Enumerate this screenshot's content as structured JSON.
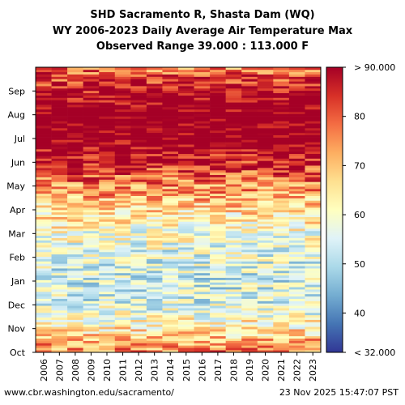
{
  "header": {
    "line1": "SHD Sacramento R, Shasta Dam (WQ)",
    "line2": "WY 2006-2023 Daily Average Air Temperature Max",
    "line3": "Observed Range 39.000 : 113.000 F"
  },
  "footer": {
    "source": "www.cbr.washington.edu/sacramento/",
    "timestamp": "23 Nov 2025 15:47:07 PST"
  },
  "chart_data": {
    "type": "heatmap",
    "x_categories": [
      "2006",
      "2007",
      "2008",
      "2009",
      "2010",
      "2011",
      "2012",
      "2013",
      "2014",
      "2015",
      "2016",
      "2017",
      "2018",
      "2019",
      "2020",
      "2021",
      "2022",
      "2023"
    ],
    "y_month_labels": [
      "Oct",
      "Nov",
      "Dec",
      "Jan",
      "Feb",
      "Mar",
      "Apr",
      "May",
      "Jun",
      "Jul",
      "Aug",
      "Sep"
    ],
    "colorbar": {
      "min": 32,
      "max": 90,
      "ticks": [
        40,
        50,
        60,
        70,
        80
      ],
      "min_label": "< 32.000",
      "max_label": "> 90.000",
      "colors": [
        "#313695",
        "#4575b4",
        "#74add1",
        "#abd9e9",
        "#e0f3f8",
        "#ffffbf",
        "#fee090",
        "#fdae61",
        "#f46d43",
        "#d73027",
        "#a50026"
      ]
    },
    "monthly_mean_estimate": {
      "months": [
        "Oct",
        "Nov",
        "Dec",
        "Jan",
        "Feb",
        "Mar",
        "Apr",
        "May",
        "Jun",
        "Jul",
        "Aug",
        "Sep"
      ],
      "values": [
        76,
        64,
        55,
        54,
        56,
        60,
        67,
        76,
        86,
        95,
        94,
        88
      ]
    },
    "missing_color": "#ffffff"
  }
}
